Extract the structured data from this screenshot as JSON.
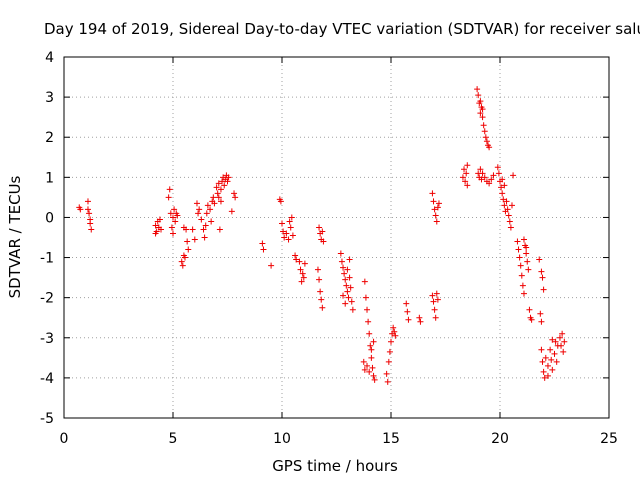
{
  "chart_data": {
    "type": "scatter",
    "title": "Day 194 of 2019, Sidereal Day-to-day VTEC variation (SDTVAR) for receiver salu",
    "xlabel": "GPS time / hours",
    "ylabel": "SDTVAR / TECUs",
    "xlim": [
      0,
      25
    ],
    "ylim": [
      -5,
      4
    ],
    "xticks": [
      "0",
      "5",
      "10",
      "15",
      "20",
      "25"
    ],
    "yticks": [
      "-5",
      "-4",
      "-3",
      "-2",
      "-1",
      "0",
      "1",
      "2",
      "3",
      "4"
    ],
    "grid": true,
    "marker": "+",
    "color": "#ee0000",
    "series": [
      {
        "name": "SDTVAR",
        "points": [
          [
            0.7,
            0.25
          ],
          [
            0.75,
            0.2
          ],
          [
            1.1,
            0.4
          ],
          [
            1.15,
            0.1
          ],
          [
            1.2,
            -0.05
          ],
          [
            1.25,
            -0.3
          ],
          [
            1.1,
            0.2
          ],
          [
            1.2,
            -0.15
          ],
          [
            4.2,
            -0.2
          ],
          [
            4.25,
            -0.35
          ],
          [
            4.3,
            -0.1
          ],
          [
            4.35,
            -0.25
          ],
          [
            4.4,
            -0.05
          ],
          [
            4.45,
            -0.3
          ],
          [
            4.2,
            -0.4
          ],
          [
            4.8,
            0.5
          ],
          [
            4.85,
            0.7
          ],
          [
            4.9,
            0.1
          ],
          [
            5.0,
            0.0
          ],
          [
            5.05,
            0.2
          ],
          [
            5.1,
            -0.1
          ],
          [
            5.15,
            0.1
          ],
          [
            5.2,
            0.05
          ],
          [
            4.95,
            -0.25
          ],
          [
            5.0,
            -0.4
          ],
          [
            5.4,
            -1.1
          ],
          [
            5.45,
            -1.2
          ],
          [
            5.5,
            -0.95
          ],
          [
            5.55,
            -1.0
          ],
          [
            5.6,
            -0.3
          ],
          [
            5.65,
            -0.6
          ],
          [
            5.7,
            -0.8
          ],
          [
            5.5,
            -0.25
          ],
          [
            5.9,
            -0.3
          ],
          [
            6.0,
            -0.55
          ],
          [
            6.1,
            0.35
          ],
          [
            6.15,
            0.1
          ],
          [
            6.2,
            0.2
          ],
          [
            6.3,
            -0.05
          ],
          [
            6.4,
            -0.3
          ],
          [
            6.45,
            -0.5
          ],
          [
            6.5,
            -0.2
          ],
          [
            6.55,
            0.1
          ],
          [
            6.6,
            0.3
          ],
          [
            6.7,
            0.2
          ],
          [
            6.75,
            -0.1
          ],
          [
            6.8,
            0.4
          ],
          [
            6.85,
            0.5
          ],
          [
            6.9,
            0.35
          ],
          [
            7.0,
            0.75
          ],
          [
            7.05,
            0.6
          ],
          [
            7.1,
            0.85
          ],
          [
            7.15,
            -0.3
          ],
          [
            7.2,
            0.7
          ],
          [
            7.25,
            0.9
          ],
          [
            7.3,
            1.0
          ],
          [
            7.35,
            0.8
          ],
          [
            7.4,
            0.95
          ],
          [
            7.45,
            1.05
          ],
          [
            7.5,
            0.9
          ],
          [
            7.55,
            1.0
          ],
          [
            7.1,
            0.5
          ],
          [
            7.2,
            0.4
          ],
          [
            7.8,
            0.6
          ],
          [
            7.85,
            0.5
          ],
          [
            7.7,
            0.15
          ],
          [
            9.1,
            -0.65
          ],
          [
            9.15,
            -0.8
          ],
          [
            9.5,
            -1.2
          ],
          [
            9.9,
            0.45
          ],
          [
            9.95,
            0.4
          ],
          [
            10.0,
            -0.15
          ],
          [
            10.05,
            -0.35
          ],
          [
            10.1,
            -0.5
          ],
          [
            10.2,
            -0.4
          ],
          [
            10.3,
            -0.55
          ],
          [
            10.4,
            -0.25
          ],
          [
            10.45,
            0.0
          ],
          [
            10.5,
            -0.45
          ],
          [
            10.35,
            -0.1
          ],
          [
            10.6,
            -0.95
          ],
          [
            10.65,
            -1.05
          ],
          [
            10.8,
            -1.1
          ],
          [
            10.85,
            -1.3
          ],
          [
            10.9,
            -1.6
          ],
          [
            11.0,
            -1.5
          ],
          [
            11.05,
            -1.15
          ],
          [
            10.95,
            -1.4
          ],
          [
            11.7,
            -0.25
          ],
          [
            11.75,
            -0.4
          ],
          [
            11.8,
            -0.55
          ],
          [
            11.85,
            -0.35
          ],
          [
            11.9,
            -0.6
          ],
          [
            11.65,
            -1.3
          ],
          [
            11.7,
            -1.55
          ],
          [
            11.75,
            -1.85
          ],
          [
            11.8,
            -2.05
          ],
          [
            11.85,
            -2.25
          ],
          [
            12.7,
            -0.9
          ],
          [
            12.75,
            -1.1
          ],
          [
            12.8,
            -1.25
          ],
          [
            12.85,
            -1.4
          ],
          [
            12.9,
            -1.55
          ],
          [
            12.95,
            -1.7
          ],
          [
            13.0,
            -1.85
          ],
          [
            13.05,
            -2.0
          ],
          [
            13.1,
            -1.5
          ],
          [
            13.15,
            -1.75
          ],
          [
            13.2,
            -2.1
          ],
          [
            13.25,
            -2.3
          ],
          [
            12.8,
            -1.95
          ],
          [
            12.9,
            -2.15
          ],
          [
            13.0,
            -1.3
          ],
          [
            13.1,
            -1.05
          ],
          [
            13.8,
            -1.6
          ],
          [
            13.85,
            -2.0
          ],
          [
            13.9,
            -2.3
          ],
          [
            13.95,
            -2.6
          ],
          [
            14.0,
            -2.9
          ],
          [
            14.05,
            -3.2
          ],
          [
            14.1,
            -3.5
          ],
          [
            14.15,
            -3.75
          ],
          [
            14.2,
            -3.95
          ],
          [
            14.25,
            -4.05
          ],
          [
            13.75,
            -3.6
          ],
          [
            13.8,
            -3.8
          ],
          [
            13.9,
            -3.7
          ],
          [
            14.0,
            -3.85
          ],
          [
            14.1,
            -3.3
          ],
          [
            14.2,
            -3.1
          ],
          [
            14.8,
            -3.9
          ],
          [
            14.85,
            -4.1
          ],
          [
            14.9,
            -3.6
          ],
          [
            14.95,
            -3.35
          ],
          [
            15.0,
            -3.1
          ],
          [
            15.05,
            -2.9
          ],
          [
            15.1,
            -2.75
          ],
          [
            15.15,
            -2.85
          ],
          [
            15.2,
            -2.95
          ],
          [
            15.7,
            -2.15
          ],
          [
            15.75,
            -2.35
          ],
          [
            15.8,
            -2.55
          ],
          [
            16.3,
            -2.5
          ],
          [
            16.35,
            -2.6
          ],
          [
            16.9,
            0.6
          ],
          [
            16.95,
            0.4
          ],
          [
            17.0,
            0.2
          ],
          [
            17.05,
            0.05
          ],
          [
            17.1,
            -0.1
          ],
          [
            17.15,
            0.25
          ],
          [
            17.2,
            0.35
          ],
          [
            16.9,
            -1.95
          ],
          [
            16.95,
            -2.1
          ],
          [
            17.0,
            -2.3
          ],
          [
            17.05,
            -2.5
          ],
          [
            17.1,
            -1.9
          ],
          [
            17.15,
            -2.05
          ],
          [
            18.3,
            1.0
          ],
          [
            18.35,
            1.2
          ],
          [
            18.4,
            0.9
          ],
          [
            18.45,
            1.1
          ],
          [
            18.5,
            0.8
          ],
          [
            18.5,
            1.3
          ],
          [
            18.95,
            3.2
          ],
          [
            19.0,
            3.05
          ],
          [
            19.05,
            2.85
          ],
          [
            19.1,
            2.6
          ],
          [
            19.15,
            2.75
          ],
          [
            19.2,
            2.5
          ],
          [
            19.25,
            2.3
          ],
          [
            19.3,
            2.15
          ],
          [
            19.35,
            2.0
          ],
          [
            19.4,
            1.9
          ],
          [
            19.45,
            1.8
          ],
          [
            19.5,
            1.75
          ],
          [
            19.1,
            2.9
          ],
          [
            19.2,
            2.7
          ],
          [
            19.0,
            1.1
          ],
          [
            19.05,
            1.0
          ],
          [
            19.1,
            1.2
          ],
          [
            19.15,
            0.95
          ],
          [
            19.2,
            1.1
          ],
          [
            19.3,
            1.0
          ],
          [
            19.4,
            0.9
          ],
          [
            19.5,
            0.85
          ],
          [
            19.6,
            0.95
          ],
          [
            19.7,
            1.05
          ],
          [
            19.9,
            1.25
          ],
          [
            19.95,
            1.1
          ],
          [
            20.0,
            0.9
          ],
          [
            20.05,
            0.75
          ],
          [
            20.1,
            0.6
          ],
          [
            20.15,
            0.45
          ],
          [
            20.2,
            0.3
          ],
          [
            20.25,
            0.15
          ],
          [
            20.3,
            0.4
          ],
          [
            20.35,
            0.2
          ],
          [
            20.4,
            0.05
          ],
          [
            20.45,
            -0.1
          ],
          [
            20.5,
            -0.25
          ],
          [
            20.55,
            0.3
          ],
          [
            20.6,
            1.05
          ],
          [
            20.1,
            0.95
          ],
          [
            20.2,
            0.8
          ],
          [
            20.8,
            -0.6
          ],
          [
            20.85,
            -0.8
          ],
          [
            20.9,
            -1.0
          ],
          [
            20.95,
            -1.2
          ],
          [
            21.0,
            -1.45
          ],
          [
            21.05,
            -1.7
          ],
          [
            21.1,
            -1.9
          ],
          [
            21.15,
            -0.7
          ],
          [
            21.2,
            -0.9
          ],
          [
            21.25,
            -1.1
          ],
          [
            21.3,
            -1.3
          ],
          [
            21.35,
            -2.3
          ],
          [
            21.4,
            -2.5
          ],
          [
            21.45,
            -2.55
          ],
          [
            21.1,
            -0.55
          ],
          [
            21.2,
            -0.75
          ],
          [
            21.85,
            -2.4
          ],
          [
            21.9,
            -2.6
          ],
          [
            21.95,
            -1.5
          ],
          [
            22.0,
            -1.8
          ],
          [
            21.8,
            -1.05
          ],
          [
            21.9,
            -1.35
          ],
          [
            21.9,
            -3.3
          ],
          [
            21.95,
            -3.6
          ],
          [
            22.0,
            -3.85
          ],
          [
            22.05,
            -4.0
          ],
          [
            22.1,
            -3.5
          ],
          [
            22.2,
            -3.7
          ],
          [
            22.3,
            -3.3
          ],
          [
            22.35,
            -3.55
          ],
          [
            22.4,
            -3.8
          ],
          [
            22.5,
            -3.4
          ],
          [
            22.55,
            -3.1
          ],
          [
            22.6,
            -3.6
          ],
          [
            22.65,
            -3.2
          ],
          [
            22.2,
            -3.95
          ],
          [
            22.4,
            -3.05
          ],
          [
            22.75,
            -3.0
          ],
          [
            22.8,
            -3.2
          ],
          [
            22.85,
            -2.9
          ],
          [
            22.9,
            -3.35
          ],
          [
            22.95,
            -3.1
          ]
        ]
      }
    ]
  }
}
